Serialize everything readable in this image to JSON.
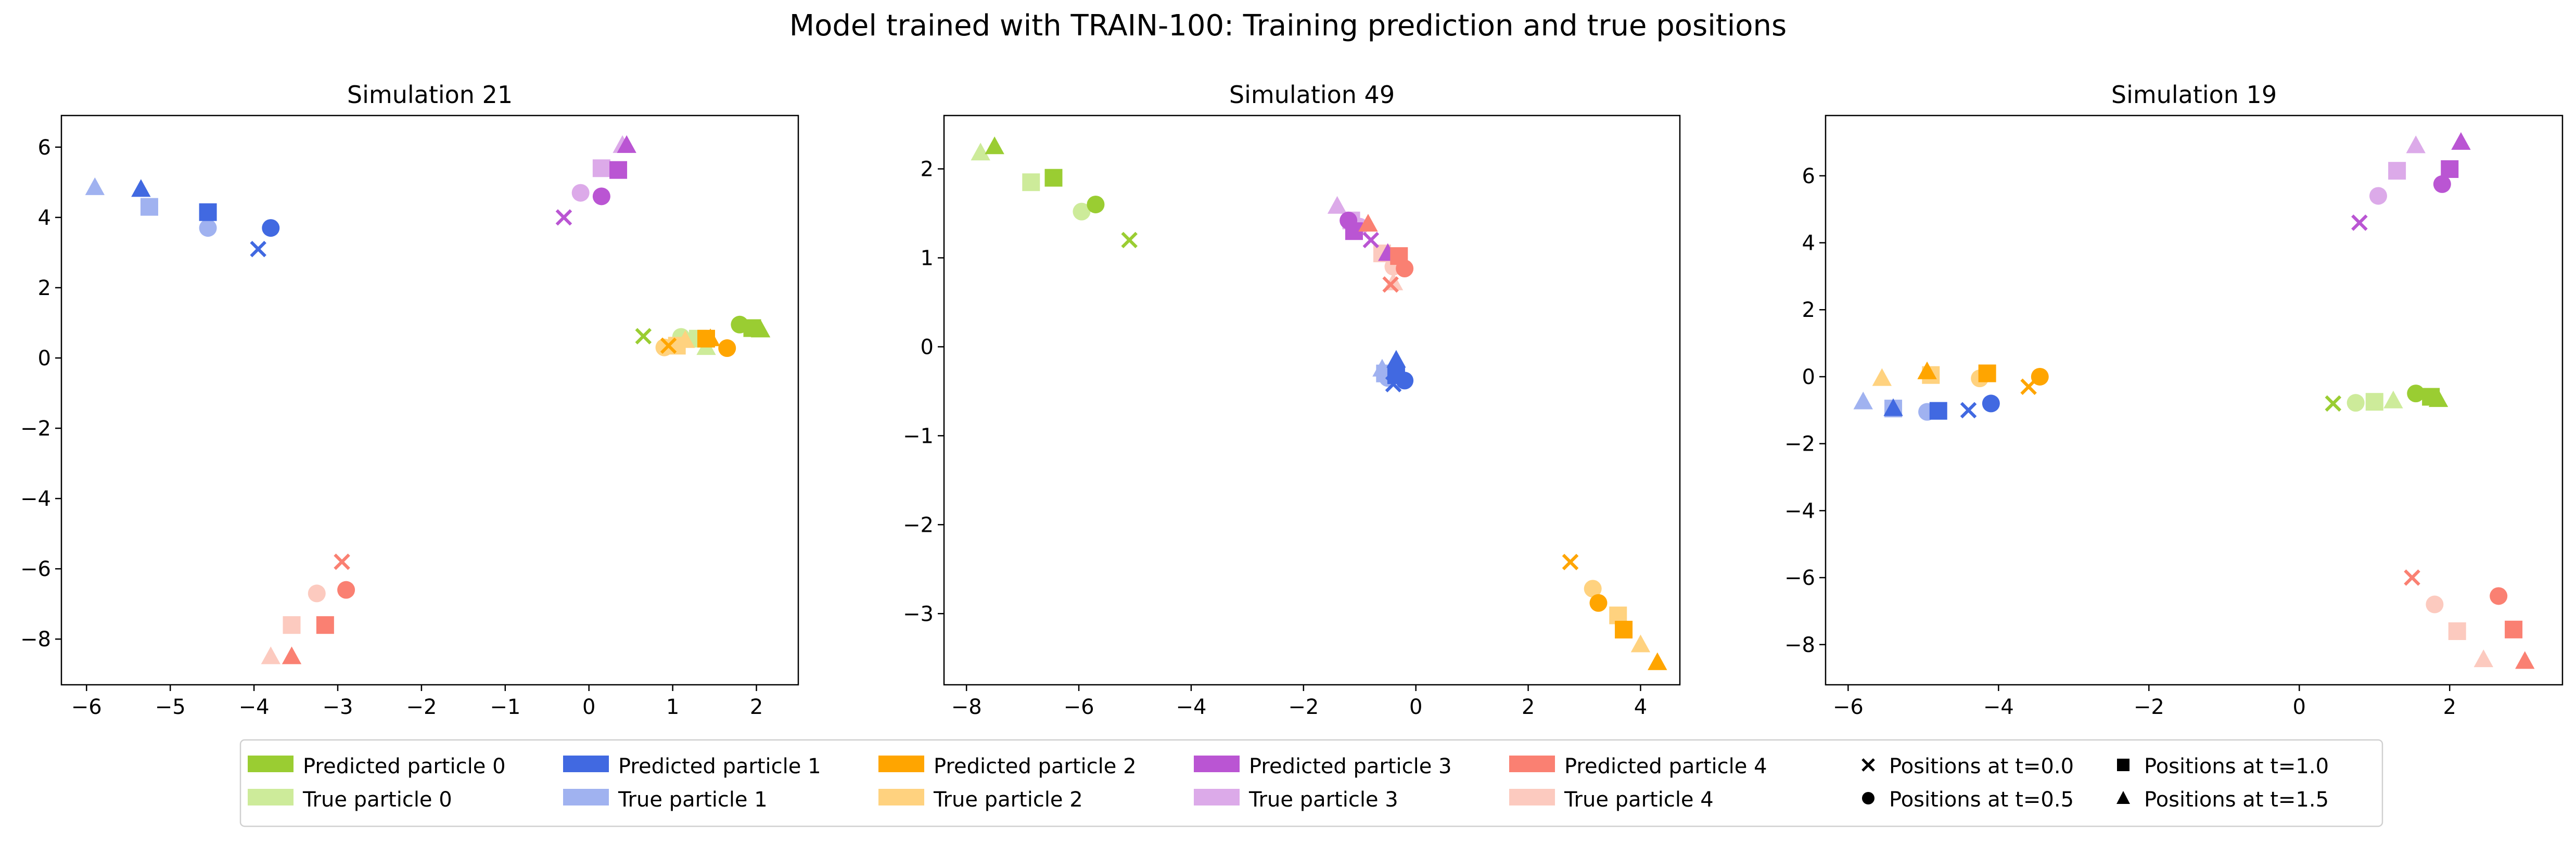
{
  "figure_title": "Model trained with TRAIN-100: Training prediction and true positions",
  "colors": {
    "pred": [
      "#9acd32",
      "#4169e1",
      "#ffa500",
      "#ba55d3",
      "#fa8072"
    ],
    "true": [
      "#cdeb9a",
      "#a0b2f0",
      "#ffd27f",
      "#dcaae9",
      "#fccabf"
    ]
  },
  "legend": {
    "particles": [
      {
        "pred": "Predicted particle 0",
        "true": "True particle 0"
      },
      {
        "pred": "Predicted particle 1",
        "true": "True particle 1"
      },
      {
        "pred": "Predicted particle 2",
        "true": "True particle 2"
      },
      {
        "pred": "Predicted particle 3",
        "true": "True particle 3"
      },
      {
        "pred": "Predicted particle 4",
        "true": "True particle 4"
      }
    ],
    "markers": [
      {
        "label": "Positions at t=0.0",
        "marker": "x"
      },
      {
        "label": "Positions at t=0.5",
        "marker": "circle"
      },
      {
        "label": "Positions at t=1.0",
        "marker": "square"
      },
      {
        "label": "Positions at t=1.5",
        "marker": "triangle"
      }
    ]
  },
  "chart_data": [
    {
      "type": "scatter",
      "title": "Simulation 21",
      "xlim": [
        -6.3,
        2.5
      ],
      "ylim": [
        -9.3,
        6.9
      ],
      "xticks": [
        -6,
        -5,
        -4,
        -3,
        -2,
        -1,
        0,
        1,
        2
      ],
      "yticks": [
        -8,
        -6,
        -4,
        -2,
        0,
        2,
        4,
        6
      ],
      "particles": [
        {
          "true": [
            [
              0.65,
              0.62
            ],
            [
              1.1,
              0.6
            ],
            [
              1.3,
              0.55
            ],
            [
              1.4,
              0.3
            ]
          ],
          "pred": [
            [
              0.65,
              0.62
            ],
            [
              1.8,
              0.95
            ],
            [
              1.95,
              0.85
            ],
            [
              2.05,
              0.8
            ]
          ]
        },
        {
          "true": [
            [
              -3.95,
              3.1
            ],
            [
              -4.55,
              3.7
            ],
            [
              -5.25,
              4.3
            ],
            [
              -5.9,
              4.85
            ]
          ],
          "pred": [
            [
              -3.95,
              3.1
            ],
            [
              -3.8,
              3.7
            ],
            [
              -4.55,
              4.15
            ],
            [
              -5.35,
              4.8
            ]
          ]
        },
        {
          "true": [
            [
              0.95,
              0.35
            ],
            [
              0.9,
              0.3
            ],
            [
              1.05,
              0.35
            ],
            [
              1.15,
              0.5
            ]
          ],
          "pred": [
            [
              0.95,
              0.35
            ],
            [
              1.65,
              0.28
            ],
            [
              1.4,
              0.55
            ],
            [
              1.45,
              0.55
            ]
          ]
        },
        {
          "true": [
            [
              -0.3,
              4.0
            ],
            [
              -0.1,
              4.7
            ],
            [
              0.15,
              5.4
            ],
            [
              0.4,
              6.05
            ]
          ],
          "pred": [
            [
              -0.3,
              4.0
            ],
            [
              0.15,
              4.6
            ],
            [
              0.35,
              5.35
            ],
            [
              0.45,
              6.05
            ]
          ]
        },
        {
          "true": [
            [
              -2.95,
              -5.8
            ],
            [
              -3.25,
              -6.7
            ],
            [
              -3.55,
              -7.6
            ],
            [
              -3.8,
              -8.5
            ]
          ],
          "pred": [
            [
              -2.95,
              -5.8
            ],
            [
              -2.9,
              -6.6
            ],
            [
              -3.15,
              -7.6
            ],
            [
              -3.55,
              -8.5
            ]
          ]
        }
      ]
    },
    {
      "type": "scatter",
      "title": "Simulation 49",
      "xlim": [
        -8.4,
        4.7
      ],
      "ylim": [
        -3.8,
        2.6
      ],
      "xticks": [
        -8,
        -6,
        -4,
        -2,
        0,
        2,
        4
      ],
      "yticks": [
        -3,
        -2,
        -1,
        0,
        1,
        2
      ],
      "particles": [
        {
          "true": [
            [
              -5.1,
              1.2
            ],
            [
              -5.95,
              1.52
            ],
            [
              -6.85,
              1.85
            ],
            [
              -7.75,
              2.18
            ]
          ],
          "pred": [
            [
              -5.1,
              1.2
            ],
            [
              -5.7,
              1.6
            ],
            [
              -6.45,
              1.9
            ],
            [
              -7.5,
              2.25
            ]
          ]
        },
        {
          "true": [
            [
              -0.4,
              -0.42
            ],
            [
              -0.5,
              -0.35
            ],
            [
              -0.55,
              -0.3
            ],
            [
              -0.6,
              -0.25
            ]
          ],
          "pred": [
            [
              -0.4,
              -0.42
            ],
            [
              -0.2,
              -0.38
            ],
            [
              -0.35,
              -0.32
            ],
            [
              -0.35,
              -0.15
            ]
          ]
        },
        {
          "true": [
            [
              2.75,
              -2.42
            ],
            [
              3.15,
              -2.72
            ],
            [
              3.6,
              -3.02
            ],
            [
              4.0,
              -3.35
            ]
          ],
          "pred": [
            [
              2.75,
              -2.42
            ],
            [
              3.25,
              -2.88
            ],
            [
              3.7,
              -3.18
            ],
            [
              4.3,
              -3.55
            ]
          ]
        },
        {
          "true": [
            [
              -0.8,
              1.2
            ],
            [
              -1.0,
              1.35
            ],
            [
              -1.15,
              1.42
            ],
            [
              -1.4,
              1.58
            ]
          ],
          "pred": [
            [
              -0.8,
              1.2
            ],
            [
              -1.2,
              1.42
            ],
            [
              -1.1,
              1.3
            ],
            [
              -0.5,
              1.05
            ]
          ]
        },
        {
          "true": [
            [
              -0.45,
              0.7
            ],
            [
              -0.4,
              0.9
            ],
            [
              -0.6,
              1.05
            ],
            [
              -0.4,
              0.72
            ]
          ],
          "pred": [
            [
              -0.45,
              0.7
            ],
            [
              -0.2,
              0.88
            ],
            [
              -0.3,
              1.02
            ],
            [
              -0.85,
              1.38
            ]
          ]
        }
      ]
    },
    {
      "type": "scatter",
      "title": "Simulation 19",
      "xlim": [
        -6.3,
        3.5
      ],
      "ylim": [
        -9.2,
        7.8
      ],
      "xticks": [
        -6,
        -4,
        -2,
        0,
        2
      ],
      "yticks": [
        -8,
        -6,
        -4,
        -2,
        0,
        2,
        4,
        6
      ],
      "particles": [
        {
          "true": [
            [
              0.45,
              -0.8
            ],
            [
              0.75,
              -0.78
            ],
            [
              1.0,
              -0.75
            ],
            [
              1.25,
              -0.72
            ]
          ],
          "pred": [
            [
              0.45,
              -0.8
            ],
            [
              1.55,
              -0.5
            ],
            [
              1.75,
              -0.6
            ],
            [
              1.85,
              -0.68
            ]
          ]
        },
        {
          "true": [
            [
              -4.4,
              -1.0
            ],
            [
              -4.95,
              -1.05
            ],
            [
              -5.4,
              -0.95
            ],
            [
              -5.8,
              -0.75
            ]
          ],
          "pred": [
            [
              -4.4,
              -1.0
            ],
            [
              -4.1,
              -0.8
            ],
            [
              -4.8,
              -1.02
            ],
            [
              -5.4,
              -0.95
            ]
          ]
        },
        {
          "true": [
            [
              -3.6,
              -0.3
            ],
            [
              -4.25,
              -0.05
            ],
            [
              -4.9,
              0.05
            ],
            [
              -5.55,
              -0.05
            ]
          ],
          "pred": [
            [
              -3.6,
              -0.3
            ],
            [
              -3.45,
              0.0
            ],
            [
              -4.15,
              0.1
            ],
            [
              -4.95,
              0.15
            ]
          ]
        },
        {
          "true": [
            [
              0.8,
              4.6
            ],
            [
              1.05,
              5.4
            ],
            [
              1.3,
              6.15
            ],
            [
              1.55,
              6.9
            ]
          ],
          "pred": [
            [
              0.8,
              4.6
            ],
            [
              1.9,
              5.75
            ],
            [
              2.0,
              6.2
            ],
            [
              2.15,
              7.0
            ]
          ]
        },
        {
          "true": [
            [
              1.5,
              -6.0
            ],
            [
              1.8,
              -6.8
            ],
            [
              2.1,
              -7.6
            ],
            [
              2.45,
              -8.45
            ]
          ],
          "pred": [
            [
              1.5,
              -6.0
            ],
            [
              2.65,
              -6.55
            ],
            [
              2.85,
              -7.55
            ],
            [
              3.0,
              -8.5
            ]
          ]
        }
      ]
    }
  ]
}
